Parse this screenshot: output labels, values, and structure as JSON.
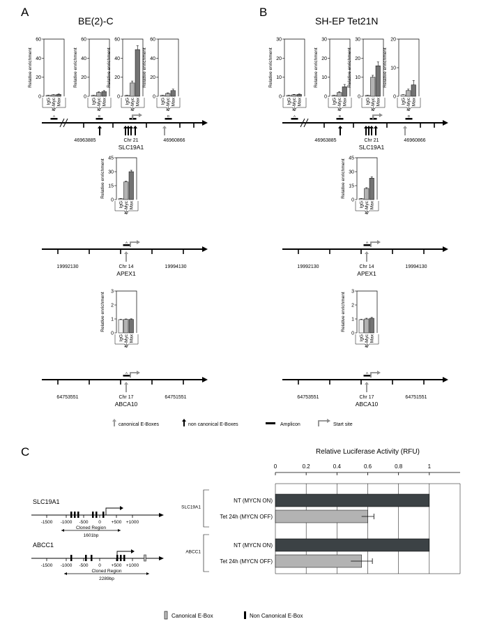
{
  "panels": {
    "A": {
      "letter": "A",
      "title": "BE(2)-C"
    },
    "B": {
      "letter": "B",
      "title": "SH-EP Tet21N"
    },
    "C": {
      "letter": "C"
    }
  },
  "bar_labels": [
    "IgG",
    "N-Myc",
    "Max"
  ],
  "ylabel": "Relative enrichment",
  "colors": {
    "IgG": "#f2f2f2",
    "N-Myc": "#b3b3b3",
    "Max": "#737373",
    "canonical": "#9a9a9a",
    "noncanonical": "#000000",
    "luc_on": "#3c4245",
    "luc_off": "#b3b3b3"
  },
  "loci": {
    "SLC19A1": {
      "chr": "Chr 21",
      "gene": "SLC19A1",
      "coord_left": "46963885",
      "coord_right": "46960866"
    },
    "APEX1": {
      "chr": "Chr 14",
      "gene": "APEX1",
      "coord_left": "19992130",
      "coord_right": "19994130"
    },
    "ABCA10": {
      "chr": "Chr 17",
      "gene": "ABCA10",
      "coord_left": "64753551",
      "coord_right": "64751551"
    }
  },
  "amplicon_letters": [
    "A",
    "B",
    "C",
    "D"
  ],
  "legend": {
    "canonical": "canonical E-Boxes",
    "noncanonical": "non canonical E-Boxes",
    "amplicon": "Amplicon",
    "start": "Start site"
  },
  "panelC": {
    "genes": [
      {
        "name": "SLC19A1",
        "ticks": [
          "-1500",
          "-1000",
          "-500",
          "0",
          "+500",
          "+1000"
        ],
        "cloned": "Cloned Region",
        "size": "1601bp"
      },
      {
        "name": "ABCC1",
        "ticks": [
          "-1500",
          "-1000",
          "-500",
          "0",
          "+500",
          "+1000"
        ],
        "cloned": "Cloned Region",
        "size": "2289bp"
      }
    ],
    "legend": {
      "canonical": "Canonical E-Box",
      "noncanonical": "Non Canonical E-Box"
    }
  },
  "chart_data": [
    {
      "type": "bar",
      "panel": "A",
      "locus": "SLC19A1",
      "amplicon": "A",
      "categories": [
        "IgG",
        "N-Myc",
        "Max"
      ],
      "values": [
        1,
        1.5,
        2
      ],
      "errors": [
        0.2,
        0.3,
        0.4
      ],
      "ylim": [
        0,
        60
      ],
      "yticks": [
        "0",
        "20",
        "40",
        "60"
      ],
      "ylabel": "Relative enrichment"
    },
    {
      "type": "bar",
      "panel": "A",
      "locus": "SLC19A1",
      "amplicon": "B",
      "categories": [
        "IgG",
        "N-Myc",
        "Max"
      ],
      "values": [
        1,
        4,
        5
      ],
      "errors": [
        0.2,
        0.6,
        1.0
      ],
      "ylim": [
        0,
        60
      ],
      "yticks": [
        "0",
        "20",
        "40",
        "60"
      ],
      "ylabel": "Relative enrichment"
    },
    {
      "type": "bar",
      "panel": "A",
      "locus": "SLC19A1",
      "amplicon": "C",
      "categories": [
        "IgG",
        "N-Myc",
        "Max"
      ],
      "values": [
        1,
        14,
        49
      ],
      "errors": [
        0.2,
        2,
        4
      ],
      "ylim": [
        0,
        60
      ],
      "yticks": [
        "0",
        "20",
        "40",
        "60"
      ],
      "ylabel": "Relative enrichment"
    },
    {
      "type": "bar",
      "panel": "A",
      "locus": "SLC19A1",
      "amplicon": "D",
      "categories": [
        "IgG",
        "N-Myc",
        "Max"
      ],
      "values": [
        1,
        3,
        6
      ],
      "errors": [
        0.2,
        0.6,
        1.5
      ],
      "ylim": [
        0,
        60
      ],
      "yticks": [
        "0",
        "20",
        "40",
        "60"
      ],
      "ylabel": "Relative enrichment"
    },
    {
      "type": "bar",
      "panel": "B",
      "locus": "SLC19A1",
      "amplicon": "A",
      "categories": [
        "IgG",
        "N-Myc",
        "Max"
      ],
      "values": [
        0.5,
        0.8,
        1
      ],
      "errors": [
        0.1,
        0.2,
        0.2
      ],
      "ylim": [
        0,
        30
      ],
      "yticks": [
        "0",
        "10",
        "20",
        "30"
      ],
      "ylabel": "Relative enrichment"
    },
    {
      "type": "bar",
      "panel": "B",
      "locus": "SLC19A1",
      "amplicon": "B",
      "categories": [
        "IgG",
        "N-Myc",
        "Max"
      ],
      "values": [
        0.5,
        2,
        5
      ],
      "errors": [
        0.1,
        0.4,
        1.2
      ],
      "ylim": [
        0,
        30
      ],
      "yticks": [
        "0",
        "10",
        "20",
        "30"
      ],
      "ylabel": "Relative enrichment"
    },
    {
      "type": "bar",
      "panel": "B",
      "locus": "SLC19A1",
      "amplicon": "C",
      "categories": [
        "IgG",
        "N-Myc",
        "Max"
      ],
      "values": [
        0.5,
        10,
        16
      ],
      "errors": [
        0.1,
        1.0,
        2.0
      ],
      "ylim": [
        0,
        30
      ],
      "yticks": [
        "0",
        "10",
        "20",
        "30"
      ],
      "ylabel": "Relative enrichment"
    },
    {
      "type": "bar",
      "panel": "B",
      "locus": "SLC19A1",
      "amplicon": "D",
      "categories": [
        "IgG",
        "N-Myc",
        "Max"
      ],
      "values": [
        0.5,
        2,
        4
      ],
      "errors": [
        0.1,
        0.5,
        1.5
      ],
      "ylim": [
        0,
        20
      ],
      "yticks": [
        "0",
        "10",
        "20"
      ],
      "ylabel": "Relative enrichment"
    },
    {
      "type": "bar",
      "panel": "A",
      "locus": "APEX1",
      "amplicon": "A",
      "categories": [
        "IgG",
        "N-Myc",
        "Max"
      ],
      "values": [
        1,
        19,
        30
      ],
      "errors": [
        0.2,
        0.8,
        1.5
      ],
      "ylim": [
        0,
        45
      ],
      "yticks": [
        "0",
        "15",
        "30",
        "45"
      ],
      "ylabel": "Relative enrichment"
    },
    {
      "type": "bar",
      "panel": "B",
      "locus": "APEX1",
      "amplicon": "A",
      "categories": [
        "IgG",
        "N-Myc",
        "Max"
      ],
      "values": [
        1,
        12,
        23
      ],
      "errors": [
        0.2,
        0.8,
        1.5
      ],
      "ylim": [
        0,
        45
      ],
      "yticks": [
        "0",
        "15",
        "30",
        "45"
      ],
      "ylabel": "Relative enrichment"
    },
    {
      "type": "bar",
      "panel": "A",
      "locus": "ABCA10",
      "amplicon": "A",
      "categories": [
        "IgG",
        "N-Myc",
        "Max"
      ],
      "values": [
        0.95,
        0.97,
        0.97
      ],
      "errors": [
        0.03,
        0.03,
        0.04
      ],
      "ylim": [
        0,
        3
      ],
      "yticks": [
        "0",
        "1",
        "2",
        "3"
      ],
      "ylabel": "Relative enrichment"
    },
    {
      "type": "bar",
      "panel": "B",
      "locus": "ABCA10",
      "amplicon": "A",
      "categories": [
        "IgG",
        "N-Myc",
        "Max"
      ],
      "values": [
        0.95,
        1.0,
        1.05
      ],
      "errors": [
        0.03,
        0.05,
        0.06
      ],
      "ylim": [
        0,
        3
      ],
      "yticks": [
        "0",
        "1",
        "2",
        "3"
      ],
      "ylabel": "Relative enrichment"
    },
    {
      "type": "bar",
      "orientation": "horizontal",
      "panel": "C",
      "title": "Relative Luciferase Activity (RFU)",
      "xlim": [
        0,
        1.2
      ],
      "xticks": [
        "0",
        "0.2",
        "0.4",
        "0.6",
        "0.8",
        "1"
      ],
      "grid": true,
      "groups": [
        "SLC19A1",
        "ABCC1"
      ],
      "categories": [
        "NT (MYCN ON)",
        "Tet 24h (MYCN OFF)"
      ],
      "series": [
        {
          "group": "SLC19A1",
          "values": [
            1.0,
            0.6
          ],
          "errors": [
            0,
            0.04
          ]
        },
        {
          "group": "ABCC1",
          "values": [
            1.0,
            0.56
          ],
          "errors": [
            0,
            0.07
          ]
        }
      ]
    }
  ]
}
